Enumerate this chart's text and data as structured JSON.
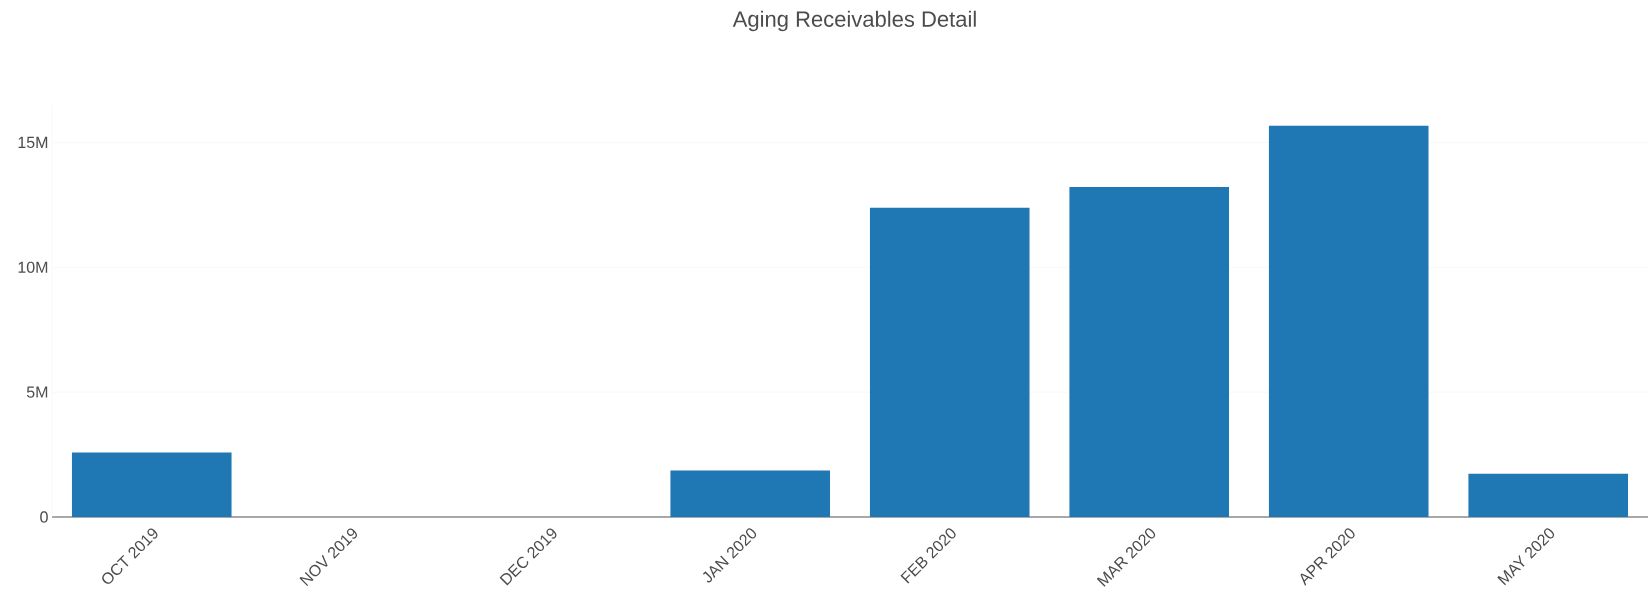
{
  "chart_data": {
    "type": "bar",
    "title": "Aging Receivables Detail",
    "categories": [
      "OCT 2019",
      "NOV 2019",
      "DEC 2019",
      "JAN 2020",
      "FEB 2020",
      "MAR 2020",
      "APR 2020",
      "MAY 2020"
    ],
    "values": [
      2.58,
      0,
      0,
      1.86,
      12.38,
      13.22,
      15.67,
      1.73
    ],
    "color": "#1f77b4",
    "ylim": [
      0,
      16.5
    ],
    "yticks": [
      0,
      {
        "value": 5,
        "label": "5M"
      },
      {
        "value": 10,
        "label": "10M"
      },
      {
        "value": 15,
        "label": "15M"
      }
    ],
    "grid": "y"
  }
}
